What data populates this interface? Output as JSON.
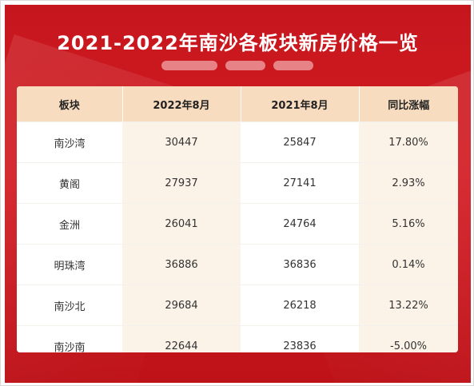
{
  "title": "2021-2022年南沙各板块新房价格一览",
  "table": {
    "headers": [
      "板块",
      "2022年8月",
      "2021年8月",
      "同比涨幅"
    ],
    "rows": [
      [
        "南沙湾",
        "30447",
        "25847",
        "17.80%"
      ],
      [
        "黄阁",
        "27937",
        "27141",
        "2.93%"
      ],
      [
        "金洲",
        "26041",
        "24764",
        "5.16%"
      ],
      [
        "明珠湾",
        "36886",
        "36836",
        "0.14%"
      ],
      [
        "南沙北",
        "29684",
        "26218",
        "13.22%"
      ],
      [
        "南沙南",
        "22644",
        "23836",
        "-5.00%"
      ]
    ]
  },
  "colors": {
    "background_red": "#c6161d",
    "header_peach": "#f8dcc0",
    "alt_column_cream": "#fbf2e8"
  }
}
